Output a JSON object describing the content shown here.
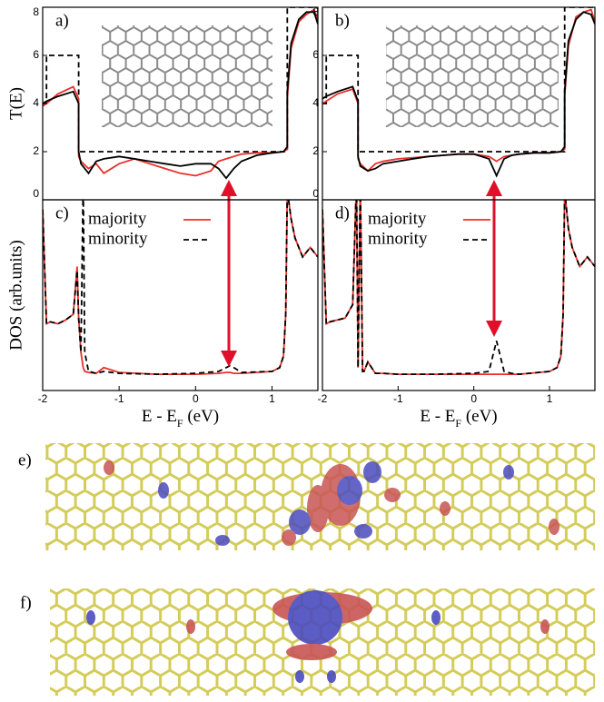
{
  "chart_data": [
    {
      "type": "line",
      "panel_label": "a)",
      "ylabel": "T(E)",
      "xlim": [
        -2,
        1.6
      ],
      "ylim": [
        0,
        8
      ],
      "yticks": [
        0,
        2,
        4,
        6,
        8
      ],
      "x": [
        -2,
        -1.95,
        -1.95,
        -1.8,
        -1.6,
        -1.53,
        -1.53,
        -1.5,
        -1.4,
        -1.3,
        -1.2,
        -1.0,
        -0.8,
        -0.6,
        -0.4,
        -0.2,
        0,
        0.2,
        0.3,
        0.4,
        0.5,
        0.6,
        0.8,
        1.0,
        1.15,
        1.2,
        1.2,
        1.25,
        1.35,
        1.45,
        1.55,
        1.6
      ],
      "series": [
        {
          "color": "#000000",
          "linestyle": "dashed",
          "values": [
            4,
            4,
            6,
            6,
            6,
            6,
            2,
            2,
            2,
            2,
            2,
            2,
            2,
            2,
            2,
            2,
            2,
            2,
            2,
            2,
            2,
            2,
            2,
            2,
            2,
            2,
            8,
            8,
            8,
            8,
            8,
            8
          ]
        },
        {
          "color": "#e8302a",
          "linestyle": "solid",
          "values": [
            3.9,
            4.0,
            4.0,
            4.4,
            4.7,
            4.2,
            1.8,
            1.6,
            1.3,
            1.5,
            1.1,
            1.5,
            1.7,
            1.5,
            1.3,
            1.1,
            1.0,
            1.2,
            1.6,
            1.7,
            1.8,
            1.9,
            1.95,
            1.95,
            2.0,
            2.1,
            4.2,
            6.3,
            7.4,
            7.7,
            7.9,
            7.5
          ]
        },
        {
          "color": "#000000",
          "linestyle": "solid",
          "values": [
            4,
            4.1,
            4.1,
            4.3,
            4.5,
            4.0,
            2.0,
            1.5,
            1.1,
            1.6,
            1.7,
            1.8,
            1.7,
            1.6,
            1.5,
            1.4,
            1.5,
            1.5,
            1.3,
            0.9,
            1.3,
            1.6,
            1.85,
            1.95,
            2.0,
            2.2,
            4.5,
            6.5,
            7.5,
            7.8,
            7.8,
            7.3
          ]
        }
      ]
    },
    {
      "type": "line",
      "panel_label": "b)",
      "xlim": [
        -2,
        1.6
      ],
      "ylim": [
        0,
        8
      ],
      "yticks": [
        0,
        2,
        4,
        6,
        8
      ],
      "x": [
        -2,
        -1.95,
        -1.95,
        -1.8,
        -1.6,
        -1.53,
        -1.53,
        -1.5,
        -1.4,
        -1.3,
        -1.2,
        -1.0,
        -0.8,
        -0.6,
        -0.4,
        -0.2,
        0,
        0.2,
        0.3,
        0.4,
        0.5,
        0.6,
        0.8,
        1.0,
        1.15,
        1.2,
        1.2,
        1.25,
        1.35,
        1.45,
        1.55,
        1.6
      ],
      "series": [
        {
          "color": "#000000",
          "linestyle": "dashed",
          "values": [
            4,
            4,
            6,
            6,
            6,
            6,
            2,
            2,
            2,
            2,
            2,
            2,
            2,
            2,
            2,
            2,
            2,
            2,
            2,
            2,
            2,
            2,
            2,
            2,
            2,
            2,
            8,
            8,
            8,
            8,
            8,
            8
          ]
        },
        {
          "color": "#e8302a",
          "linestyle": "solid",
          "values": [
            4.0,
            4.1,
            4.1,
            4.4,
            4.6,
            4.0,
            1.7,
            1.5,
            1.2,
            1.5,
            1.6,
            1.7,
            1.75,
            1.8,
            1.85,
            1.9,
            1.9,
            1.8,
            1.6,
            1.8,
            1.85,
            1.9,
            1.95,
            1.95,
            2.0,
            2.1,
            4.3,
            6.4,
            7.6,
            7.8,
            7.9,
            7.4
          ]
        },
        {
          "color": "#000000",
          "linestyle": "solid",
          "values": [
            4.2,
            4.3,
            4.3,
            4.5,
            4.7,
            4.1,
            1.8,
            1.4,
            1.2,
            1.3,
            1.5,
            1.6,
            1.7,
            1.8,
            1.85,
            1.9,
            1.9,
            1.7,
            1.0,
            1.7,
            1.85,
            1.9,
            1.95,
            1.95,
            2.0,
            2.2,
            4.5,
            6.6,
            7.5,
            7.8,
            7.7,
            7.3
          ]
        }
      ]
    },
    {
      "type": "line",
      "panel_label": "c)",
      "ylabel": "DOS (arb.units)",
      "xlabel": [
        "E - E",
        "F",
        " (eV)"
      ],
      "xlim": [
        -2,
        1.6
      ],
      "ylim": [
        0,
        10
      ],
      "xticks": [
        -2,
        -1,
        0,
        1
      ],
      "legend": "upper left",
      "x": [
        -2,
        -1.95,
        -1.9,
        -1.8,
        -1.7,
        -1.6,
        -1.55,
        -1.53,
        -1.5,
        -1.47,
        -1.45,
        -1.4,
        -1.3,
        -1.2,
        -1.0,
        -0.5,
        0,
        0.3,
        0.4,
        0.45,
        0.5,
        0.6,
        1.0,
        1.1,
        1.15,
        1.18,
        1.2,
        1.25,
        1.3,
        1.4,
        1.5,
        1.6
      ],
      "series": [
        {
          "name": "majority",
          "color": "#e8302a",
          "linestyle": "solid",
          "values": [
            9.5,
            3.5,
            3.6,
            3.5,
            3.7,
            4.0,
            6.5,
            3.8,
            2.0,
            1.2,
            1.0,
            0.95,
            0.9,
            1.2,
            0.95,
            0.85,
            0.85,
            0.9,
            0.95,
            0.95,
            0.9,
            0.9,
            1.0,
            1.2,
            1.8,
            4,
            10.5,
            9.0,
            8.0,
            7.0,
            7.5,
            7.0
          ]
        },
        {
          "name": "minority",
          "color": "#000000",
          "linestyle": "dashed",
          "values": [
            9.5,
            3.5,
            3.6,
            3.5,
            3.7,
            4.0,
            6.3,
            3.8,
            2.0,
            11,
            2.0,
            1.0,
            0.9,
            1.0,
            0.9,
            0.85,
            0.9,
            1.0,
            1.2,
            1.3,
            1.2,
            0.95,
            1.0,
            1.2,
            1.8,
            4,
            10.5,
            9.0,
            8.0,
            7.0,
            7.5,
            7.0
          ]
        }
      ]
    },
    {
      "type": "line",
      "panel_label": "d)",
      "xlabel": [
        "E - E",
        "F",
        " (eV)"
      ],
      "xlim": [
        -2,
        1.6
      ],
      "ylim": [
        0,
        10
      ],
      "xticks": [
        -2,
        -1,
        0,
        1
      ],
      "legend": "upper left",
      "x": [
        -2,
        -1.95,
        -1.9,
        -1.8,
        -1.7,
        -1.6,
        -1.55,
        -1.53,
        -1.5,
        -1.47,
        -1.45,
        -1.4,
        -1.3,
        -1.2,
        -1.0,
        -0.5,
        0,
        0.2,
        0.3,
        0.4,
        0.5,
        0.6,
        1.0,
        1.1,
        1.15,
        1.18,
        1.2,
        1.25,
        1.3,
        1.4,
        1.5,
        1.6
      ],
      "series": [
        {
          "name": "majority",
          "color": "#e8302a",
          "linestyle": "solid",
          "values": [
            9.5,
            3.5,
            3.6,
            3.7,
            3.8,
            4.5,
            11,
            1.2,
            11,
            1.0,
            1.0,
            1.5,
            0.9,
            0.9,
            0.85,
            0.85,
            0.85,
            0.85,
            0.85,
            0.85,
            0.85,
            0.85,
            1.0,
            1.2,
            1.8,
            4,
            10.5,
            8.5,
            7.5,
            6.5,
            7.0,
            6.5
          ]
        },
        {
          "name": "minority",
          "color": "#000000",
          "linestyle": "dashed",
          "values": [
            9.5,
            3.5,
            3.6,
            3.7,
            3.8,
            4.5,
            11,
            1.2,
            11,
            1.0,
            1.0,
            1.5,
            0.9,
            0.9,
            0.85,
            0.85,
            0.9,
            1.0,
            2.6,
            1.0,
            0.9,
            0.85,
            1.0,
            1.2,
            1.8,
            4,
            10.5,
            8.5,
            7.5,
            6.5,
            7.0,
            6.5
          ]
        }
      ]
    }
  ],
  "figure_panels": [
    {
      "label": "e)"
    },
    {
      "label": "f)"
    }
  ]
}
